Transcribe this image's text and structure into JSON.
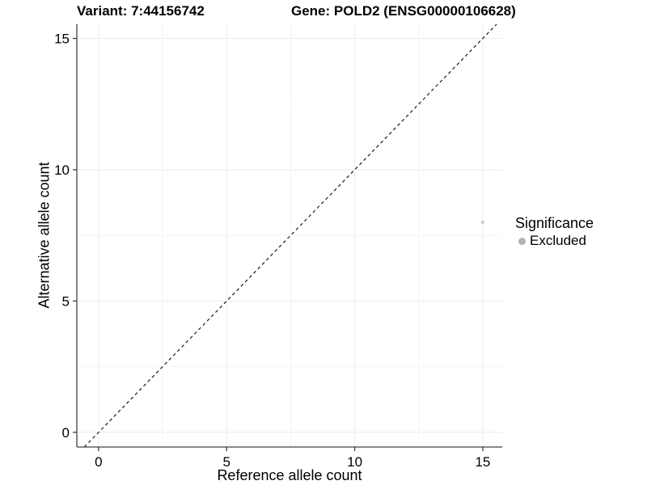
{
  "chart_data": {
    "type": "scatter",
    "title_left": "Variant: 7:44156742",
    "title_right": "Gene: POLD2 (ENSG00000106628)",
    "xlabel": "Reference allele count",
    "ylabel": "Alternative allele count",
    "xlim": [
      -0.85,
      15.76
    ],
    "ylim": [
      -0.56,
      15.54
    ],
    "xticks": {
      "values": [
        0,
        5,
        10,
        15
      ],
      "labels": [
        "0",
        "5",
        "10",
        "15"
      ],
      "minor": [
        2.5,
        7.5,
        12.5
      ]
    },
    "yticks": {
      "values": [
        0,
        5,
        10,
        15
      ],
      "labels": [
        "0",
        "5",
        "10",
        "15"
      ],
      "minor": [
        2.5,
        7.5,
        12.5
      ]
    },
    "grid": true,
    "series": [
      {
        "name": "Excluded",
        "color": "#c7c7c7",
        "points": [
          {
            "x": 15,
            "y": 8
          }
        ]
      }
    ],
    "reference_line": {
      "type": "identity",
      "style": "dashed",
      "color": "#1a1a1a"
    },
    "legend": {
      "title": "Significance",
      "position": "right",
      "items": [
        {
          "label": "Excluded",
          "color": "#b3b3b3"
        }
      ]
    }
  }
}
